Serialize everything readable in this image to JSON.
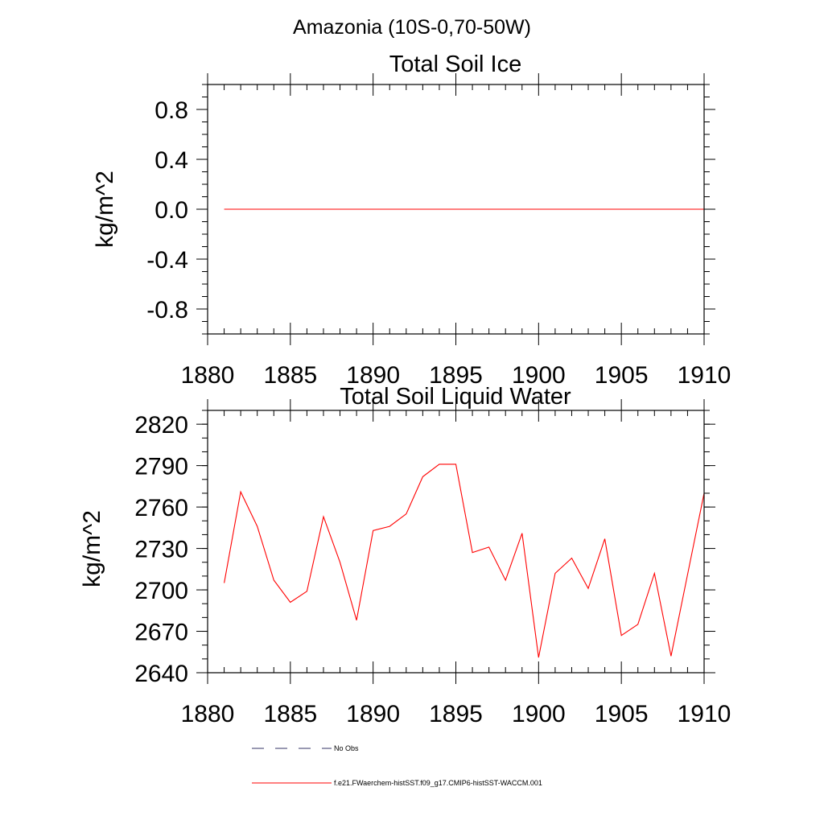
{
  "supertitle": "Amazonia (10S-0,70-50W)",
  "chart_data": [
    {
      "type": "line",
      "title": "Total Soil Ice",
      "ylabel": "kg/m^2",
      "xlim": [
        1880,
        1910
      ],
      "ylim": [
        -1.0,
        1.0
      ],
      "xticks": [
        "1880",
        "1885",
        "1890",
        "1895",
        "1900",
        "1905",
        "1910"
      ],
      "yticks": [
        "-0.8",
        "-0.4",
        "0.0",
        "0.4",
        "0.8"
      ],
      "series": [
        {
          "name": "f.e21.FWaerchem-histSST.f09_g17.CMIP6-histSST-WACCM.001",
          "color": "#ff0000",
          "x": [
            1881,
            1882,
            1883,
            1884,
            1885,
            1886,
            1887,
            1888,
            1889,
            1890,
            1891,
            1892,
            1893,
            1894,
            1895,
            1896,
            1897,
            1898,
            1899,
            1900,
            1901,
            1902,
            1903,
            1904,
            1905,
            1906,
            1907,
            1908,
            1909,
            1910
          ],
          "y": [
            0,
            0,
            0,
            0,
            0,
            0,
            0,
            0,
            0,
            0,
            0,
            0,
            0,
            0,
            0,
            0,
            0,
            0,
            0,
            0,
            0,
            0,
            0,
            0,
            0,
            0,
            0,
            0,
            0,
            0
          ]
        }
      ]
    },
    {
      "type": "line",
      "title": "Total Soil Liquid Water",
      "ylabel": "kg/m^2",
      "xlim": [
        1880,
        1910
      ],
      "ylim": [
        2640,
        2830
      ],
      "xticks": [
        "1880",
        "1885",
        "1890",
        "1895",
        "1900",
        "1905",
        "1910"
      ],
      "yticks": [
        "2640",
        "2670",
        "2700",
        "2730",
        "2760",
        "2790",
        "2820"
      ],
      "series": [
        {
          "name": "f.e21.FWaerchem-histSST.f09_g17.CMIP6-histSST-WACCM.001",
          "color": "#ff0000",
          "x": [
            1881,
            1882,
            1883,
            1884,
            1885,
            1886,
            1887,
            1888,
            1889,
            1890,
            1891,
            1892,
            1893,
            1894,
            1895,
            1896,
            1897,
            1898,
            1899,
            1900,
            1901,
            1902,
            1903,
            1904,
            1905,
            1906,
            1907,
            1908,
            1909,
            1910
          ],
          "y": [
            2705,
            2771,
            2746,
            2707,
            2691,
            2699,
            2753,
            2720,
            2678,
            2743,
            2746,
            2755,
            2782,
            2791,
            2791,
            2727,
            2731,
            2707,
            2741,
            2651,
            2712,
            2723,
            2701,
            2737,
            2667,
            2675,
            2712,
            2652,
            2711,
            2770
          ]
        }
      ]
    }
  ],
  "legend": [
    {
      "label": "No Obs",
      "style": "dashed",
      "color": "#333366"
    },
    {
      "label": "f.e21.FWaerchem-histSST.f09_g17.CMIP6-histSST-WACCM.001",
      "style": "solid",
      "color": "#ff0000"
    }
  ]
}
